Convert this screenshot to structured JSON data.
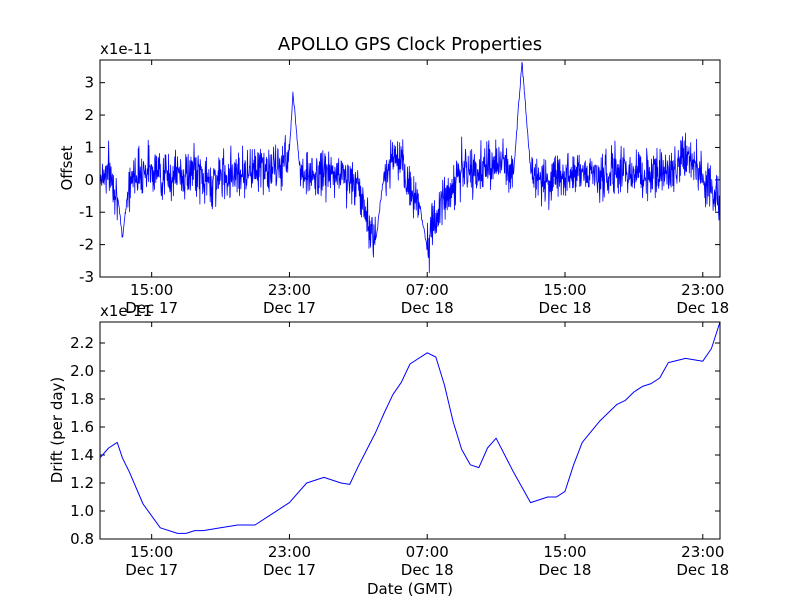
{
  "figure": {
    "title": "APOLLO GPS Clock Properties",
    "line_color": "#0000ff"
  },
  "chart_data": [
    {
      "type": "line",
      "title": "APOLLO GPS Clock Properties",
      "xlabel": "",
      "ylabel": "Offset",
      "y_scale_label": "x1e-11",
      "ylim": [
        -3,
        3.7
      ],
      "yticks": [
        "-3",
        "-2",
        "-1",
        "0",
        "1",
        "2",
        "3"
      ],
      "xlim": [
        "2009-12-17 12:00",
        "2009-12-19 00:00"
      ],
      "xtick_times": [
        "15:00",
        "23:00",
        "07:00",
        "15:00",
        "23:00"
      ],
      "xtick_dates": [
        "Dec 17",
        "Dec 17",
        "Dec 18",
        "Dec 18",
        "Dec 18"
      ],
      "grid": false,
      "series": [
        {
          "x_hours": [
            0,
            0.5,
            1,
            1.3,
            1.6,
            2,
            2.5,
            3,
            3.5,
            4,
            4.5,
            5,
            5.5,
            6,
            6.5,
            7,
            7.5,
            8,
            8.5,
            9,
            9.5,
            10,
            10.5,
            11,
            11.2,
            11.6,
            12,
            12.5,
            13,
            13.5,
            14,
            14.5,
            15,
            15.5,
            16,
            16.5,
            17,
            17.5,
            18,
            18.5,
            19,
            19.5,
            20,
            20.5,
            21,
            21.5,
            22,
            22.5,
            23,
            23.5,
            24,
            24.5,
            25,
            25.5,
            26,
            26.5,
            27,
            27.5,
            28,
            28.5,
            29,
            29.5,
            30,
            30.5,
            31,
            31.5,
            32,
            32.5,
            33,
            33.5,
            34,
            34.5,
            35,
            35.5,
            36
          ],
          "values": [
            0.1,
            0.3,
            -0.4,
            -1.8,
            -0.4,
            0.2,
            0.3,
            0.4,
            0.2,
            0.1,
            0.2,
            0.1,
            0.3,
            0,
            -0.1,
            0.1,
            0.2,
            0.3,
            0.2,
            0.5,
            0.3,
            0.3,
            0.4,
            0.9,
            2.7,
            0.4,
            0.2,
            0,
            0.3,
            0.1,
            0.2,
            0,
            -0.2,
            -1.2,
            -1.9,
            0.2,
            0.7,
            0.4,
            -0.3,
            -0.6,
            -2.1,
            -1.2,
            -0.5,
            -0.2,
            0.3,
            0.2,
            0.3,
            0.4,
            0.5,
            0.5,
            0.1,
            3.7,
            0.3,
            0,
            -0.1,
            0.2,
            0.1,
            0.3,
            0.3,
            0.2,
            0.1,
            0.1,
            0.3,
            0.2,
            0.3,
            0.2,
            0.2,
            0.3,
            0.1,
            0.6,
            0.8,
            0.5,
            0.1,
            -0.4,
            -0.7
          ],
          "noise_amplitude": 0.45
        }
      ]
    },
    {
      "type": "line",
      "xlabel": "Date (GMT)",
      "ylabel": "Drift (per day)",
      "y_scale_label": "x1e-11",
      "ylim": [
        0.8,
        2.35
      ],
      "yticks": [
        "0.8",
        "1.0",
        "1.2",
        "1.4",
        "1.6",
        "1.8",
        "2.0",
        "2.2"
      ],
      "xlim": [
        "2009-12-17 12:00",
        "2009-12-19 00:00"
      ],
      "xtick_times": [
        "15:00",
        "23:00",
        "07:00",
        "15:00",
        "23:00"
      ],
      "xtick_dates": [
        "Dec 17",
        "Dec 17",
        "Dec 18",
        "Dec 18",
        "Dec 18"
      ],
      "grid": false,
      "series": [
        {
          "x_hours": [
            0,
            0.5,
            1,
            1.3,
            1.7,
            2.5,
            3.5,
            4.5,
            5,
            5.5,
            6,
            7,
            8,
            9,
            10,
            11,
            12,
            13,
            14,
            14.5,
            15,
            15.5,
            16,
            16.5,
            17,
            17.5,
            18,
            19,
            19.5,
            20,
            20.5,
            21,
            21.5,
            22,
            22.5,
            23,
            24,
            25,
            26,
            26.5,
            27,
            27.5,
            28,
            29,
            30,
            30.5,
            31,
            31.5,
            32,
            32.5,
            33,
            34,
            35,
            35.5,
            36
          ],
          "values": [
            1.38,
            1.45,
            1.49,
            1.38,
            1.28,
            1.05,
            0.88,
            0.84,
            0.84,
            0.86,
            0.86,
            0.88,
            0.9,
            0.9,
            0.98,
            1.06,
            1.2,
            1.24,
            1.2,
            1.19,
            1.32,
            1.44,
            1.56,
            1.7,
            1.83,
            1.92,
            2.05,
            2.13,
            2.1,
            1.9,
            1.64,
            1.44,
            1.33,
            1.31,
            1.45,
            1.52,
            1.28,
            1.06,
            1.1,
            1.1,
            1.14,
            1.33,
            1.49,
            1.64,
            1.76,
            1.79,
            1.85,
            1.89,
            1.91,
            1.95,
            2.06,
            2.09,
            2.07,
            2.16,
            2.35
          ]
        }
      ]
    }
  ]
}
